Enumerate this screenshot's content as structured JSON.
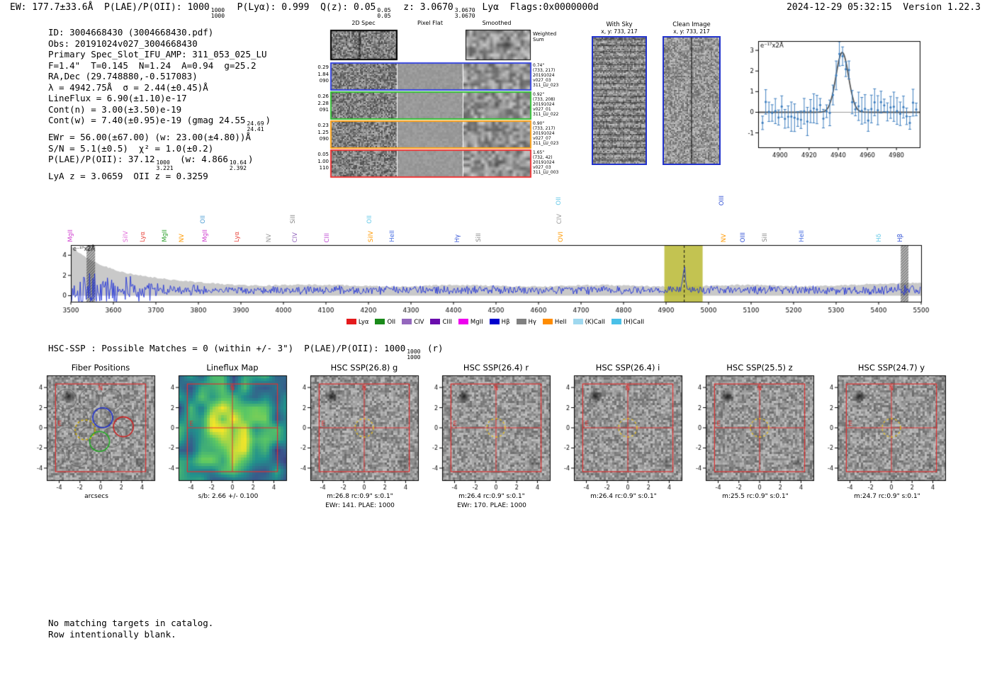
{
  "header": {
    "segments": [
      {
        "t": "EW: 177.7±33.6Å  P(LAE)/P(OII): 1000"
      },
      {
        "frac": [
          "1000",
          "1000"
        ]
      },
      {
        "t": "  P(Lyα): 0.999  Q(z): 0.05"
      },
      {
        "frac": [
          "0.05",
          "0.05"
        ]
      },
      {
        "t": "  z: 3.0670"
      },
      {
        "frac": [
          "3.0670",
          "3.0670"
        ]
      },
      {
        "t": " Lyα  Flags:0x0000000d"
      }
    ],
    "right": "2024-12-29 05:32:15  Version 1.22.3"
  },
  "info": {
    "lines": [
      [
        {
          "t": "ID: 3004668430 (3004668430.pdf)"
        }
      ],
      [
        {
          "t": "Obs: 20191024v027_3004668430"
        }
      ],
      [
        {
          "t": "Primary Spec_Slot_IFU_AMP: 311_053_025_LU"
        }
      ],
      [
        {
          "t": "F=1.4\"  T=0.145  N=1.24  A=0.94  g=25.2"
        }
      ],
      [
        {
          "t": "RA,Dec (29.748880,-0.517083)"
        }
      ],
      [
        {
          "t": "λ = 4942.75Å  σ = 2.44(±0.45)Å"
        }
      ],
      [
        {
          "t": "LineFlux = 6.90(±1.10)e-17"
        }
      ],
      [
        {
          "t": "Cont(n) = 3.00(±3.50)e-19"
        }
      ],
      [
        {
          "t": "Cont(w) = 7.40(±0.95)e-19 (gmag 24.55"
        },
        {
          "frac": [
            "24.69",
            "24.41"
          ]
        },
        {
          "t": ")"
        }
      ],
      [
        {
          "t": "EWr = 56.00(±67.00) (w: 23.00(±4.80))Å"
        }
      ],
      [
        {
          "t": "S/N = 5.1(±0.5)  χ² = 1.0(±0.2)"
        }
      ],
      [
        {
          "t": "P(LAE)/P(OII): 37.12"
        },
        {
          "frac": [
            "1000",
            "3.221"
          ]
        },
        {
          "t": " (w: 4.866"
        },
        {
          "frac": [
            "10.64",
            "2.392"
          ]
        },
        {
          "t": ")"
        }
      ],
      [
        {
          "t": "LyA z = 3.0659  OII z = 0.3259"
        }
      ]
    ]
  },
  "spec2d": {
    "col_headers": [
      "2D Spec",
      "Pixel Flat",
      "Smoothed"
    ],
    "weighted_1": "Weighted",
    "weighted_2": "Sum",
    "top_seed": 201,
    "top_smooth_seed": 202,
    "rows": [
      {
        "left": [
          "0.29",
          "1.84",
          "090"
        ],
        "color": "#2233dd",
        "right": [
          "0.74\"",
          "(733, 217)",
          "20191024",
          "v027_03",
          "311_LU_023"
        ]
      },
      {
        "left": [
          "0.26",
          "2.28",
          "091"
        ],
        "color": "#22bb22",
        "right": [
          "0.92\"",
          "(733, 208)",
          "20191024",
          "v027_01",
          "311_LU_022"
        ]
      },
      {
        "left": [
          "0.23",
          "1.25",
          "090"
        ],
        "color": "#ff9900",
        "right": [
          "0.90\"",
          "(733, 217)",
          "20191024",
          "v027_07",
          "311_LU_023"
        ]
      },
      {
        "left": [
          "0.05",
          "1.00",
          "110"
        ],
        "color": "#ee2222",
        "right": [
          "1.65\"",
          "(732, 42)",
          "20191024",
          "v027_03",
          "311_LU_003"
        ]
      }
    ]
  },
  "withsky": {
    "title": "With Sky",
    "subtitle": "x, y: 733, 217",
    "seed": 301
  },
  "clean": {
    "title": "Clean Image",
    "subtitle": "x, y: 733, 217",
    "seed": 302
  },
  "hsc_line": {
    "segments": [
      {
        "t": "HSC-SSP : Possible Matches = 0 (within +/- 3\")  P(LAE)/P(OII): 1000"
      },
      {
        "frac": [
          "1000",
          "1000"
        ]
      },
      {
        "t": " (r)"
      }
    ]
  },
  "footer": {
    "lines": [
      "No matching targets in catalog.",
      "Row intentionally blank."
    ]
  },
  "chart_data": [
    {
      "id": "emission-line-fit",
      "type": "scatter",
      "title": "",
      "ylabel": "e⁻¹⁷x2Å",
      "xlim": [
        4885,
        4996
      ],
      "ylim": [
        -1.7,
        3.45
      ],
      "xticks": [
        4900,
        4920,
        4940,
        4960,
        4980
      ],
      "yticks": [
        -1,
        0,
        1,
        2,
        3
      ],
      "gaussian_fit": {
        "center": 4942.75,
        "sigma_A": 2.44,
        "display_sigma": 4.3,
        "amplitude": 2.9
      },
      "points_note": "blue spectrum points with error bars scattered about gaussian fit; gray zero line",
      "seed": 7
    },
    {
      "id": "full-spectrum",
      "type": "line",
      "title": "",
      "ylabel": "e⁻¹⁷x2Å",
      "xlim": [
        3500,
        5500
      ],
      "ylim": [
        -0.6,
        5.0
      ],
      "xticks": [
        3500,
        3600,
        3700,
        3800,
        3900,
        4000,
        4100,
        4200,
        4300,
        4400,
        4500,
        4600,
        4700,
        4800,
        4900,
        5000,
        5100,
        5200,
        5300,
        5400,
        5500
      ],
      "yticks": [
        0,
        2,
        4
      ],
      "emission_peak": {
        "x": 4942.75,
        "height": 2.1
      },
      "highlight_band": {
        "x0": 4896,
        "x1": 4986,
        "color": "#b8b832",
        "center_line": 4942.75
      },
      "hatch_bands": [
        [
          3537,
          3557
        ],
        [
          5452,
          5470
        ]
      ],
      "noise_seed": 101,
      "envelope_seed": 55,
      "series_note": "noisy blue flux spectrum over gray error envelope; high variance at blue end",
      "line_labels": [
        {
          "x": 3500,
          "label": "MgII",
          "color": "#cf3fcf",
          "row": 0
        },
        {
          "x": 3630,
          "label": "SiIV",
          "color": "#e06bd9",
          "row": 0
        },
        {
          "x": 3670,
          "label": "Lyα",
          "color": "#e8443b",
          "row": 0
        },
        {
          "x": 3722,
          "label": "MgII",
          "color": "#2ca02c",
          "row": 0
        },
        {
          "x": 3762,
          "label": "NV",
          "color": "#ff9900",
          "row": 0
        },
        {
          "x": 3812,
          "label": "OII",
          "color": "#4f9fd4",
          "row": 1
        },
        {
          "x": 3816,
          "label": "MgII",
          "color": "#cf3fcf",
          "row": 0
        },
        {
          "x": 3892,
          "label": "Lyα",
          "color": "#e8443b",
          "row": 0
        },
        {
          "x": 3966,
          "label": "NV",
          "color": "#999999",
          "row": 0
        },
        {
          "x": 4024,
          "label": "SiII",
          "color": "#888888",
          "row": 1
        },
        {
          "x": 4028,
          "label": "CIV",
          "color": "#9467bd",
          "row": 0
        },
        {
          "x": 4104,
          "label": "CIII",
          "color": "#c04fd4",
          "row": 0
        },
        {
          "x": 4203,
          "label": "OII",
          "color": "#62c8e8",
          "row": 1
        },
        {
          "x": 4207,
          "label": "SiIV",
          "color": "#ff9900",
          "row": 0
        },
        {
          "x": 4256,
          "label": "HeII",
          "color": "#4169e1",
          "row": 0
        },
        {
          "x": 4410,
          "label": "Hγ",
          "color": "#2f4fd4",
          "row": 0
        },
        {
          "x": 4460,
          "label": "SiII",
          "color": "#888888",
          "row": 0
        },
        {
          "x": 4648,
          "label": "OII",
          "color": "#62c8e8",
          "row": 2
        },
        {
          "x": 4650,
          "label": "CIV",
          "color": "#999999",
          "row": 1
        },
        {
          "x": 4653,
          "label": "OVI",
          "color": "#ff9900",
          "row": 0
        },
        {
          "x": 5032,
          "label": "OIII",
          "color": "#2f4fd4",
          "row": 2
        },
        {
          "x": 5036,
          "label": "NV",
          "color": "#ff9900",
          "row": 0
        },
        {
          "x": 5082,
          "label": "OIII",
          "color": "#2f4fd4",
          "row": 0
        },
        {
          "x": 5134,
          "label": "SiII",
          "color": "#888888",
          "row": 0
        },
        {
          "x": 5220,
          "label": "HeII",
          "color": "#4169e1",
          "row": 0
        },
        {
          "x": 5402,
          "label": "Hδ",
          "color": "#62c8e8",
          "row": 0
        },
        {
          "x": 5452,
          "label": "Hβ",
          "color": "#2f4fd4",
          "row": 0
        }
      ],
      "legend": [
        {
          "label": "Lyα",
          "color": "#e41a1c"
        },
        {
          "label": "OII",
          "color": "#1a8a1a"
        },
        {
          "label": "CIV",
          "color": "#9467bd"
        },
        {
          "label": "CIII",
          "color": "#6a0dad"
        },
        {
          "label": "MgII",
          "color": "#ee00ee"
        },
        {
          "label": "Hβ",
          "color": "#0000cd"
        },
        {
          "label": "Hγ",
          "color": "#808080"
        },
        {
          "label": "HeII",
          "color": "#ff8c00"
        },
        {
          "label": "(K)CaII",
          "color": "#9fd8ef"
        },
        {
          "label": "(H)CaII",
          "color": "#49c0e8"
        }
      ]
    }
  ],
  "cutouts": {
    "ticks": [
      -4,
      -2,
      0,
      2,
      4
    ],
    "compass": {
      "n": "N",
      "e": "E"
    },
    "panels": [
      {
        "title": "Fiber Positions",
        "type": "fiber",
        "xlabel": "arcsecs",
        "seed": 401
      },
      {
        "title": "Lineflux Map",
        "type": "viridis",
        "xlabel": "s/b: 2.66 +/- 0.100",
        "seed": 402
      },
      {
        "title": "HSC SSP(26.8) g",
        "type": "gray",
        "xlabel": "m:26.8 rc:0.9\" s:0.1\"",
        "xlabel2": "EWr: 141. PLAE: 1000",
        "seed": 403
      },
      {
        "title": "HSC SSP(26.4) r",
        "type": "gray",
        "xlabel": "m:26.4 rc:0.9\" s:0.1\"",
        "xlabel2": "EWr: 170. PLAE: 1000",
        "seed": 404
      },
      {
        "title": "HSC SSP(26.4) i",
        "type": "gray",
        "xlabel": "m:26.4 rc:0.9\" s:0.1\"",
        "seed": 405
      },
      {
        "title": "HSC SSP(25.5) z",
        "type": "gray",
        "xlabel": "m:25.5 rc:0.9\" s:0.1\"",
        "seed": 406
      },
      {
        "title": "HSC SSP(24.7) y",
        "type": "gray",
        "xlabel": "m:24.7 rc:0.9\" s:0.1\"",
        "seed": 407
      }
    ]
  }
}
